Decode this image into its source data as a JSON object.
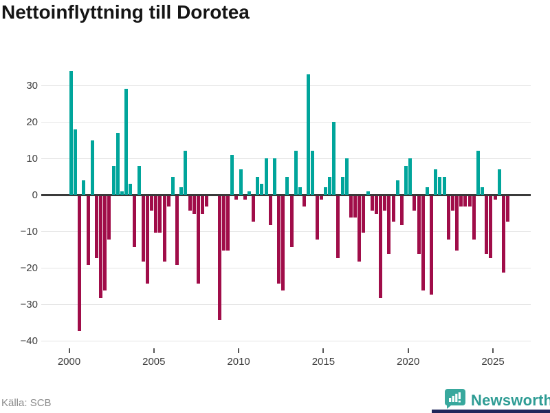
{
  "title": "Nettoinflyttning till Dorotea",
  "source": "Källa: SCB",
  "logo": {
    "text": "Newsworthy",
    "icon": "newsworthy-chart-bubble-icon"
  },
  "colors": {
    "positive": "#00A59B",
    "negative": "#A00D49",
    "logo_teal": "#2E9C94",
    "accent_navy": "#20265B",
    "gridline": "#e4e4e4",
    "axis": "#3a3a3a"
  },
  "chart_data": {
    "type": "bar",
    "title": "Nettoinflyttning till Dorotea",
    "xlabel": "",
    "ylabel": "",
    "frequency": "quarterly",
    "start_year": 2000,
    "end_year": 2025,
    "x_tick_labels": [
      "2000",
      "2005",
      "2010",
      "2015",
      "2020",
      "2025"
    ],
    "y_tick_values": [
      30,
      20,
      10,
      0,
      -10,
      -20,
      -30,
      -40
    ],
    "y_tick_labels": [
      "30",
      "20",
      "10",
      "0",
      "−10",
      "−20",
      "−30",
      "−40"
    ],
    "ylim": [
      -40,
      35
    ],
    "grid": true,
    "legend": false,
    "values_by_year": {
      "2000": [
        34,
        18,
        -37,
        4
      ],
      "2001": [
        -19,
        15,
        -17,
        -28
      ],
      "2002": [
        -26,
        -12,
        8,
        17
      ],
      "2003": [
        1,
        29,
        3,
        -14
      ],
      "2004": [
        8,
        -18,
        -24,
        -4
      ],
      "2005": [
        -10,
        -10,
        -18,
        -3
      ],
      "2006": [
        5,
        -19,
        2,
        12
      ],
      "2007": [
        -4,
        -5,
        -24,
        -5
      ],
      "2008": [
        -3,
        0,
        0,
        -34
      ],
      "2009": [
        -15,
        -15,
        11,
        -1
      ],
      "2010": [
        7,
        -1,
        1,
        -7
      ],
      "2011": [
        5,
        3,
        10,
        -8
      ],
      "2012": [
        10,
        -24,
        -26,
        5
      ],
      "2013": [
        -14,
        12,
        2,
        -3
      ],
      "2014": [
        33,
        12,
        -12,
        -1
      ],
      "2015": [
        2,
        5,
        20,
        -17
      ],
      "2016": [
        5,
        10,
        -6,
        -6
      ],
      "2017": [
        -18,
        -10,
        1,
        -4
      ],
      "2018": [
        -5,
        -28,
        -4,
        -16
      ],
      "2019": [
        -7,
        4,
        -8,
        8
      ],
      "2020": [
        10,
        -4,
        -16,
        -26
      ],
      "2021": [
        2,
        -27,
        7,
        5
      ],
      "2022": [
        5,
        -12,
        -4,
        -15
      ],
      "2023": [
        -3,
        -3,
        -3,
        -12
      ],
      "2024": [
        12,
        2,
        -16,
        -17
      ],
      "2025": [
        -1,
        7,
        -21,
        -7
      ]
    }
  }
}
